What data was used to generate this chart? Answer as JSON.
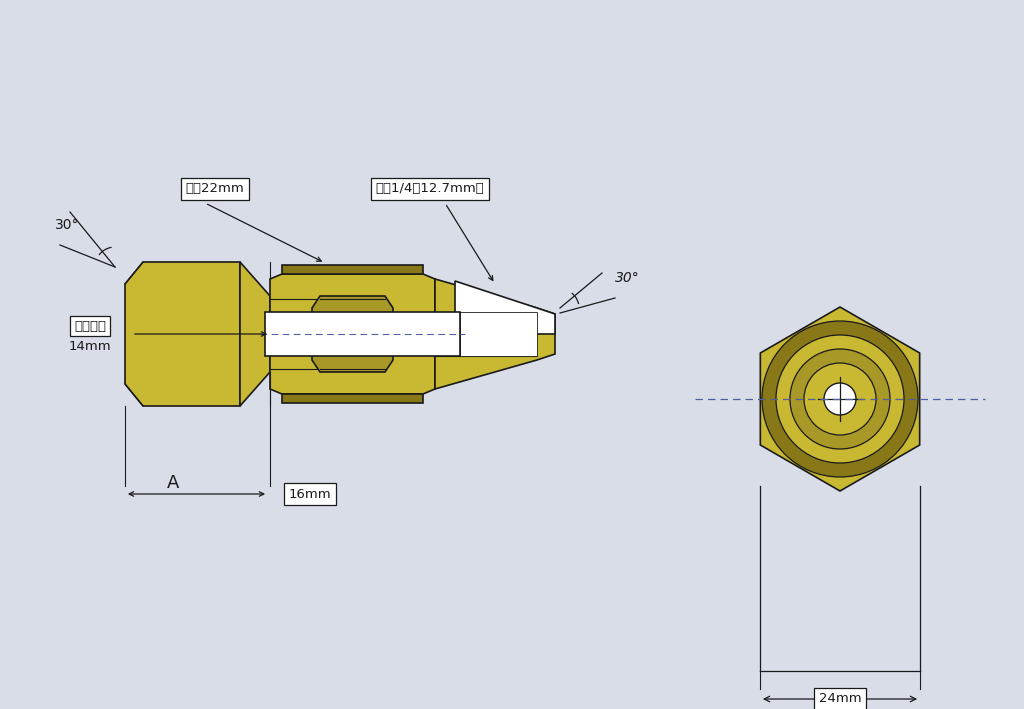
{
  "bg_color": "#d8dde8",
  "brass_fill": "#c8b832",
  "brass_mid": "#a89828",
  "brass_dark": "#887818",
  "line_color": "#1a1a1a",
  "text_color": "#1a1a1a",
  "dim_line_color": "#5060a0",
  "label_30_left": "30°",
  "label_30_right": "30°",
  "label_od22": "外径22mm",
  "label_od14": "外径1/4（12.7mm）",
  "label_bore1": "軸受内径",
  "label_bore2": "14mm",
  "label_A": "A",
  "label_16mm": "16mm",
  "label_24mm": "24mm",
  "white": "#ffffff"
}
